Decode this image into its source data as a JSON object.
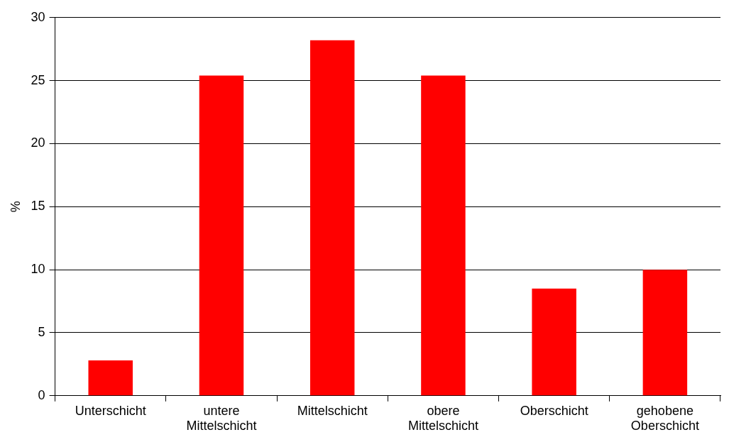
{
  "chart_data": {
    "type": "bar",
    "ylabel": "%",
    "categories": [
      "Unterschicht",
      "untere Mittelschicht",
      "Mittelschicht",
      "obere Mittelschicht",
      "Oberschicht",
      "gehobene Oberschicht"
    ],
    "values": [
      2.8,
      25.4,
      28.2,
      25.4,
      8.5,
      10.0
    ],
    "color": "#ff0000",
    "ylim": [
      0,
      30
    ],
    "yticks": [
      0,
      5,
      10,
      15,
      20,
      25,
      30
    ],
    "grid": "y",
    "legend": false
  }
}
